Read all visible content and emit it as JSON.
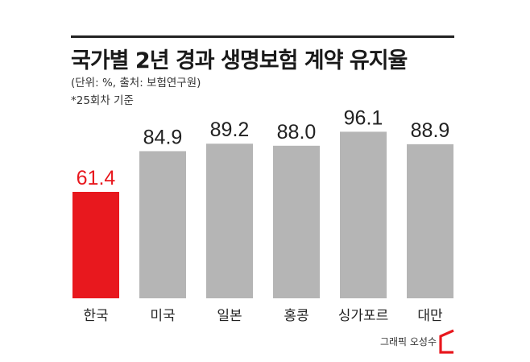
{
  "header": {
    "title": "국가별 2년 경과 생명보험 계약 유지율",
    "subtitle": "(단위: %, 출처: 보험연구원)",
    "note": "*25회차 기준"
  },
  "chart_data": {
    "type": "bar",
    "title": "국가별 2년 경과 생명보험 계약 유지율",
    "subtitle": "(단위: %, 출처: 보험연구원)",
    "note": "*25회차 기준",
    "categories": [
      "한국",
      "미국",
      "일본",
      "홍콩",
      "싱가포르",
      "대만"
    ],
    "values": [
      61.4,
      84.9,
      89.2,
      88.0,
      96.1,
      88.9
    ],
    "value_labels": [
      "61.4",
      "84.9",
      "89.2",
      "88.0",
      "96.1",
      "88.9"
    ],
    "highlight_index": 0,
    "colors": {
      "highlight": "#e8181e",
      "bar": "#b5b5b5",
      "highlight_label": "#e8181e",
      "label": "#222222"
    },
    "ylim": [
      0,
      100
    ],
    "grid": false,
    "legend": "none"
  },
  "credit": {
    "text": "그래픽 오성수",
    "logo_icon": "bracket-logo-icon",
    "logo_color": "#e8181e"
  }
}
